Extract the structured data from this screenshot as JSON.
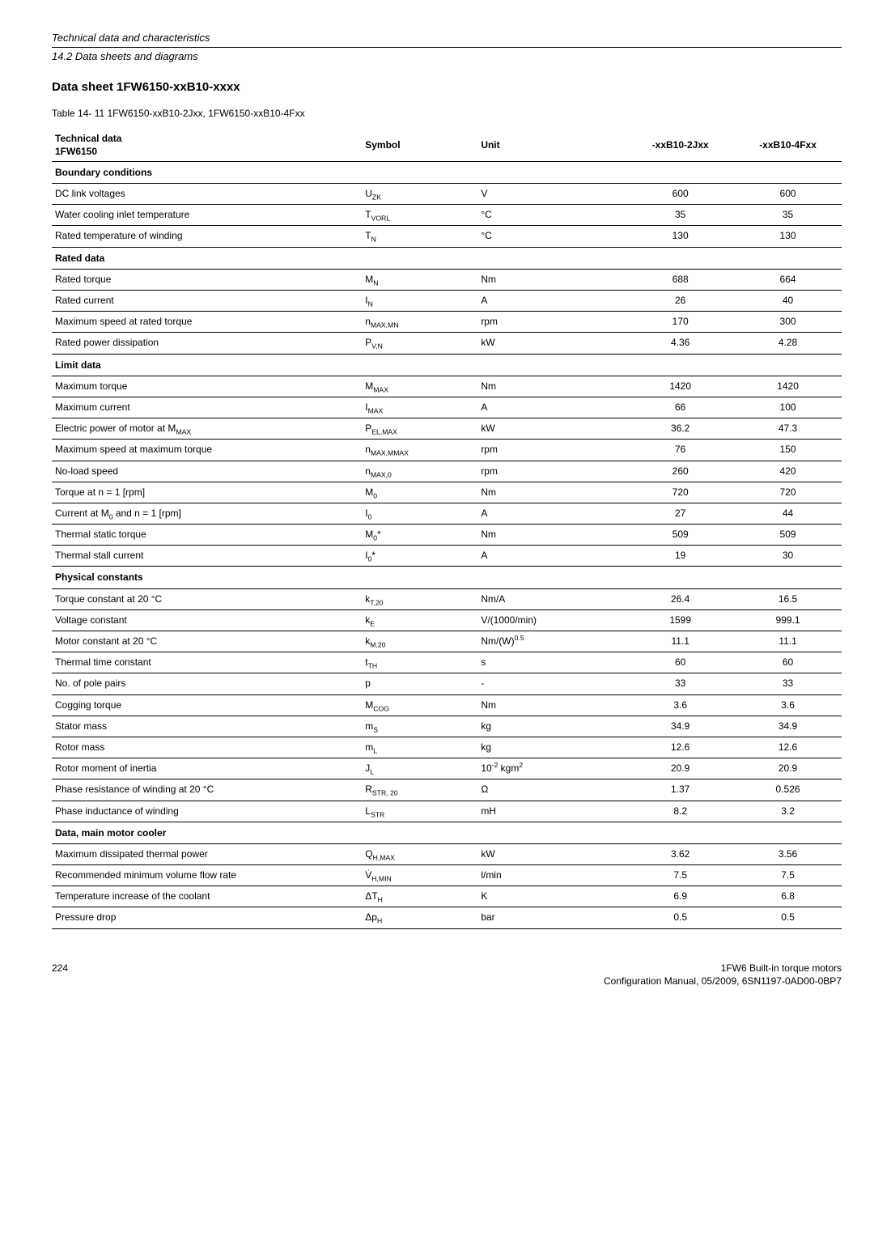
{
  "header": {
    "line1": "Technical data and characteristics",
    "line2": "14.2 Data sheets and diagrams"
  },
  "section_title": "Data sheet 1FW6150-xxB10-xxxx",
  "table_caption": "Table 14- 11   1FW6150-xxB10-2Jxx, 1FW6150-xxB10-4Fxx",
  "columns": {
    "c1a": "Technical data",
    "c1b": "1FW6150",
    "c2": "Symbol",
    "c3": "Unit",
    "c4": "-xxB10-2Jxx",
    "c5": "-xxB10-4Fxx"
  },
  "sections": [
    {
      "title": "Boundary conditions",
      "rows": [
        {
          "label": "DC link voltages",
          "sym": "U<sub>ZK</sub>",
          "unit": "V",
          "v1": "600",
          "v2": "600"
        },
        {
          "label": "Water cooling inlet temperature",
          "sym": "T<sub>VORL</sub>",
          "unit": "°C",
          "v1": "35",
          "v2": "35"
        },
        {
          "label": "Rated temperature of winding",
          "sym": "T<sub>N</sub>",
          "unit": "°C",
          "v1": "130",
          "v2": "130"
        }
      ]
    },
    {
      "title": "Rated data",
      "rows": [
        {
          "label": "Rated torque",
          "sym": "M<sub>N</sub>",
          "unit": "Nm",
          "v1": "688",
          "v2": "664"
        },
        {
          "label": "Rated current",
          "sym": "I<sub>N</sub>",
          "unit": "A",
          "v1": "26",
          "v2": "40"
        },
        {
          "label": "Maximum speed at rated torque",
          "sym": "n<sub>MAX,MN</sub>",
          "unit": "rpm",
          "v1": "170",
          "v2": "300"
        },
        {
          "label": "Rated power dissipation",
          "sym": "P<sub>V,N</sub>",
          "unit": "kW",
          "v1": "4.36",
          "v2": "4.28"
        }
      ]
    },
    {
      "title": "Limit data",
      "rows": [
        {
          "label": "Maximum torque",
          "sym": "M<sub>MAX</sub>",
          "unit": "Nm",
          "v1": "1420",
          "v2": "1420"
        },
        {
          "label": "Maximum current",
          "sym": "I<sub>MAX</sub>",
          "unit": "A",
          "v1": "66",
          "v2": "100"
        },
        {
          "label": "Electric power of motor at M<sub>MAX</sub>",
          "sym": "P<sub>EL,MAX</sub>",
          "unit": "kW",
          "v1": "36.2",
          "v2": "47.3"
        },
        {
          "label": "Maximum speed at maximum torque",
          "sym": "n<sub>MAX,MMAX</sub>",
          "unit": "rpm",
          "v1": "76",
          "v2": "150"
        },
        {
          "label": "No-load speed",
          "sym": "n<sub>MAX,0</sub>",
          "unit": "rpm",
          "v1": "260",
          "v2": "420"
        },
        {
          "label": "Torque at n = 1 [rpm]",
          "sym": "M<sub>0</sub>",
          "unit": "Nm",
          "v1": "720",
          "v2": "720"
        },
        {
          "label": "Current at M<sub>0</sub> and n = 1 [rpm]",
          "sym": "I<sub>0</sub>",
          "unit": "A",
          "v1": "27",
          "v2": "44"
        },
        {
          "label": "Thermal static torque",
          "sym": "M<sub>0</sub>*",
          "unit": "Nm",
          "v1": "509",
          "v2": "509"
        },
        {
          "label": "Thermal stall current",
          "sym": "I<sub>0</sub>*",
          "unit": "A",
          "v1": "19",
          "v2": "30"
        }
      ]
    },
    {
      "title": "Physical constants",
      "rows": [
        {
          "label": "Torque constant at 20 °C",
          "sym": "k<sub>T,20</sub>",
          "unit": "Nm/A",
          "v1": "26.4",
          "v2": "16.5"
        },
        {
          "label": "Voltage constant",
          "sym": "k<sub>E</sub>",
          "unit": "V/(1000/min)",
          "v1": "1599",
          "v2": "999.1"
        },
        {
          "label": "Motor constant at 20 °C",
          "sym": "k<sub>M,20</sub>",
          "unit": "Nm/(W)<sup>0.5</sup>",
          "v1": "11.1",
          "v2": "11.1"
        },
        {
          "label": "Thermal time constant",
          "sym": "t<sub>TH</sub>",
          "unit": "s",
          "v1": "60",
          "v2": "60"
        },
        {
          "label": "No. of pole pairs",
          "sym": "p",
          "unit": "-",
          "v1": "33",
          "v2": "33"
        },
        {
          "label": "Cogging torque",
          "sym": "M<sub>COG</sub>",
          "unit": "Nm",
          "v1": "3.6",
          "v2": "3.6"
        },
        {
          "label": "Stator mass",
          "sym": "m<sub>S</sub>",
          "unit": "kg",
          "v1": "34.9",
          "v2": "34.9"
        },
        {
          "label": "Rotor mass",
          "sym": "m<sub>L</sub>",
          "unit": "kg",
          "v1": "12.6",
          "v2": "12.6"
        },
        {
          "label": "Rotor moment of inertia",
          "sym": "J<sub>L</sub>",
          "unit": "10<sup>-2</sup> kgm<sup>2</sup>",
          "v1": "20.9",
          "v2": "20.9"
        },
        {
          "label": "Phase resistance of winding at 20 °C",
          "sym": "R<sub>STR, 20</sub>",
          "unit": "Ω",
          "v1": "1.37",
          "v2": "0.526"
        },
        {
          "label": "Phase inductance of winding",
          "sym": "L<sub>STR</sub>",
          "unit": "mH",
          "v1": "8.2",
          "v2": "3.2"
        }
      ]
    },
    {
      "title": "Data, main motor cooler",
      "rows": [
        {
          "label": "Maximum dissipated thermal power",
          "sym": "Q<sub>H,MAX</sub>",
          "unit": "kW",
          "v1": "3.62",
          "v2": "3.56"
        },
        {
          "label": "Recommended minimum volume flow rate",
          "sym": "V̇<sub>H,MIN</sub>",
          "unit": "l/min",
          "v1": "7.5",
          "v2": "7.5"
        },
        {
          "label": "Temperature increase of the coolant",
          "sym": "ΔT<sub>H</sub>",
          "unit": "K",
          "v1": "6.9",
          "v2": "6.8"
        },
        {
          "label": "Pressure drop",
          "sym": "Δp<sub>H</sub>",
          "unit": "bar",
          "v1": "0.5",
          "v2": "0.5"
        }
      ]
    }
  ],
  "footer": {
    "page": "224",
    "right1": "1FW6 Built-in torque motors",
    "right2": "Configuration Manual, 05/2009, 6SN1197-0AD00-0BP7"
  }
}
